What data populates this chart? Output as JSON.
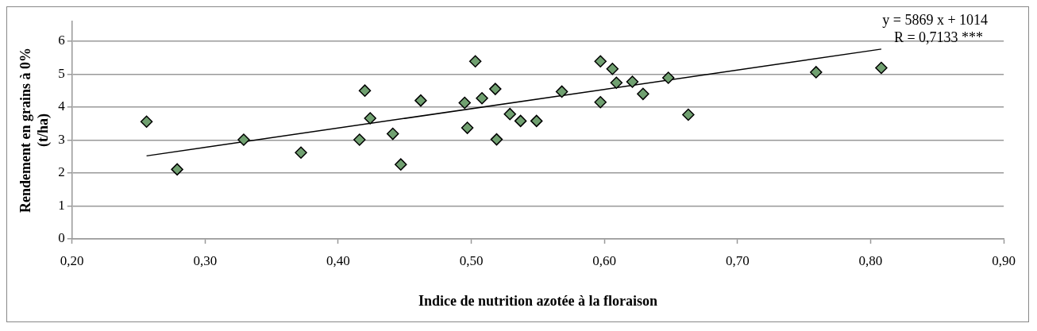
{
  "chart_data": {
    "type": "scatter",
    "xlabel": "Indice de nutrition azotée à la floraison",
    "ylabel": "Rendement en grains à 0%\n(t/ha)",
    "annotations": [
      "y = 5869 x + 1014",
      "R = 0,7133 ***"
    ],
    "series": [
      {
        "type": "scatter",
        "color": "#70a070",
        "marker": "diamond",
        "x": [
          0.256,
          0.279,
          0.329,
          0.372,
          0.416,
          0.42,
          0.424,
          0.441,
          0.447,
          0.462,
          0.495,
          0.497,
          0.503,
          0.508,
          0.518,
          0.519,
          0.529,
          0.537,
          0.549,
          0.568,
          0.597,
          0.597,
          0.606,
          0.609,
          0.621,
          0.629,
          0.648,
          0.663,
          0.759,
          0.808
        ],
        "values": [
          3.56,
          2.11,
          3.01,
          2.62,
          3.01,
          4.5,
          3.66,
          3.19,
          2.26,
          4.2,
          4.13,
          3.37,
          5.39,
          4.27,
          4.55,
          3.02,
          3.79,
          3.58,
          3.58,
          4.47,
          5.39,
          4.15,
          5.16,
          4.74,
          4.77,
          4.4,
          4.89,
          3.77,
          5.06,
          5.19
        ]
      },
      {
        "type": "line",
        "color": "#000000",
        "marker": "none",
        "line_style": "solid",
        "x": [
          0.256,
          0.808
        ],
        "values": [
          2.52,
          5.76
        ]
      }
    ],
    "xlim": [
      0.2,
      0.9
    ],
    "xticks": [
      {
        "value": 0.2,
        "label": "0,20"
      },
      {
        "value": 0.3,
        "label": "0,30"
      },
      {
        "value": 0.4,
        "label": "0,40"
      },
      {
        "value": 0.5,
        "label": "0,50"
      },
      {
        "value": 0.6,
        "label": "0,60"
      },
      {
        "value": 0.7,
        "label": "0,70"
      },
      {
        "value": 0.8,
        "label": "0,80"
      },
      {
        "value": 0.9,
        "label": "0,90"
      }
    ],
    "ylim": [
      0,
      6.6
    ],
    "yticks": [
      0,
      1,
      2,
      3,
      4,
      5,
      6
    ],
    "grid": "y",
    "legend": false
  }
}
